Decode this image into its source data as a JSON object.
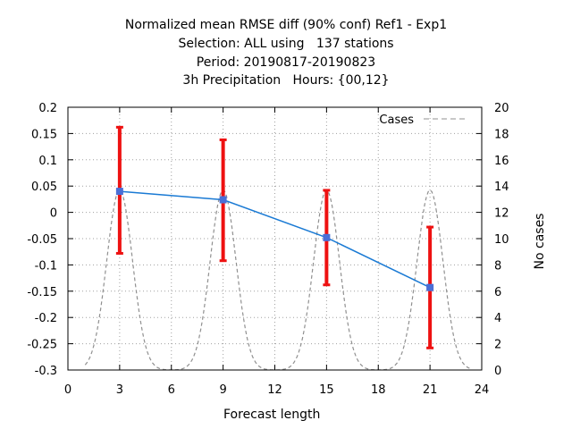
{
  "chart_data": {
    "type": "line",
    "title_lines": [
      "Normalized mean RMSE diff (90% conf) Ref1 - Exp1",
      "Selection: ALL using   137 stations",
      "Period: 20190817-20190823",
      "3h Precipitation   Hours: {00,12}"
    ],
    "xlabel": "Forecast length",
    "ylabel": "",
    "y2label": "No cases",
    "xlim": [
      0,
      24
    ],
    "ylim": [
      -0.3,
      0.2
    ],
    "y2lim": [
      0,
      20
    ],
    "x_ticks": [
      0,
      3,
      6,
      9,
      12,
      15,
      18,
      21,
      24
    ],
    "y_ticks": [
      -0.3,
      -0.25,
      -0.2,
      -0.15,
      -0.1,
      -0.05,
      0,
      0.05,
      0.1,
      0.15,
      0.2
    ],
    "y_tick_labels": [
      "-0.3",
      "-0.25",
      "-0.2",
      "-0.15",
      "-0.1",
      "-0.05",
      "0",
      "0.05",
      "0.1",
      "0.15",
      "0.2"
    ],
    "y2_ticks": [
      0,
      2,
      4,
      6,
      8,
      10,
      12,
      14,
      16,
      18,
      20
    ],
    "grid": true,
    "legend_position": "top-right",
    "series": [
      {
        "type": "line-with-errorbars",
        "x": [
          3,
          9,
          15,
          21
        ],
        "y": [
          0.04,
          0.024,
          -0.048,
          -0.143
        ],
        "err_low": [
          -0.078,
          -0.092,
          -0.138,
          -0.258
        ],
        "err_high": [
          0.162,
          0.138,
          0.042,
          -0.028
        ],
        "line_color": "#1a7ad4",
        "marker_color": "#4a6fd6",
        "errorbar_color": "#ee1111"
      },
      {
        "name": "Cases",
        "type": "dashed-curve",
        "axis": "y2",
        "peaks_x": [
          3,
          9,
          15,
          21
        ],
        "peaks_y": [
          13.7,
          13.7,
          13.7,
          13.7
        ],
        "color": "#909090"
      }
    ]
  }
}
